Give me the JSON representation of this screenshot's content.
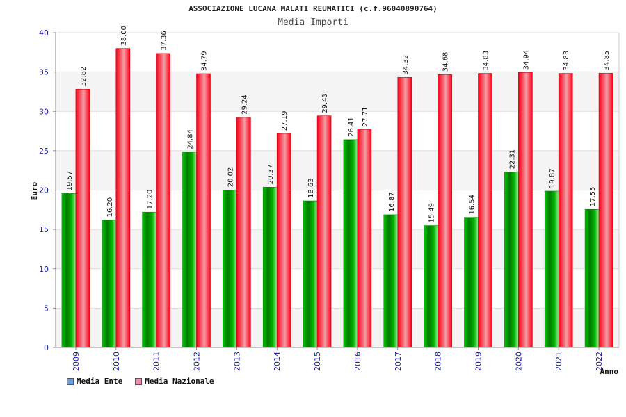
{
  "chart_data": {
    "type": "bar",
    "title": "ASSOCIAZIONE LUCANA MALATI REUMATICI (c.f.96040890764)",
    "subtitle": "Media Importi",
    "xlabel": "Anno",
    "ylabel": "Euro",
    "ylim": [
      0,
      40
    ],
    "yticks": [
      0,
      5,
      10,
      15,
      20,
      25,
      30,
      35,
      40
    ],
    "categories": [
      "2009",
      "2010",
      "2011",
      "2012",
      "2013",
      "2014",
      "2015",
      "2016",
      "2017",
      "2018",
      "2019",
      "2020",
      "2021",
      "2022"
    ],
    "series": [
      {
        "name": "Media Ente",
        "color": "#00a000",
        "values": [
          19.57,
          16.2,
          17.2,
          24.84,
          20.02,
          20.37,
          18.63,
          26.41,
          16.87,
          15.49,
          16.54,
          22.31,
          19.87,
          17.55
        ],
        "labels": [
          "19.57",
          "16.20",
          "17.20",
          "24.84",
          "20.02",
          "20.37",
          "18.63",
          "26.41",
          "16.87",
          "15.49",
          "16.54",
          "22.31",
          "19.87",
          "17.55"
        ]
      },
      {
        "name": "Media Nazionale",
        "color": "#e8001a",
        "values": [
          32.82,
          38.0,
          37.36,
          34.79,
          29.24,
          27.19,
          29.43,
          27.71,
          34.32,
          34.68,
          34.83,
          34.94,
          34.83,
          34.85
        ],
        "labels": [
          "32.82",
          "38.00",
          "37.36",
          "34.79",
          "29.24",
          "27.19",
          "29.43",
          "27.71",
          "34.32",
          "34.68",
          "34.83",
          "34.94",
          "34.83",
          "34.85"
        ]
      }
    ],
    "legend": [
      {
        "name": "Media Ente",
        "color": "#6a9ee8"
      },
      {
        "name": "Media Nazionale",
        "color": "#e88ab0"
      }
    ],
    "legend_position": "bottom-left",
    "grid": true
  }
}
